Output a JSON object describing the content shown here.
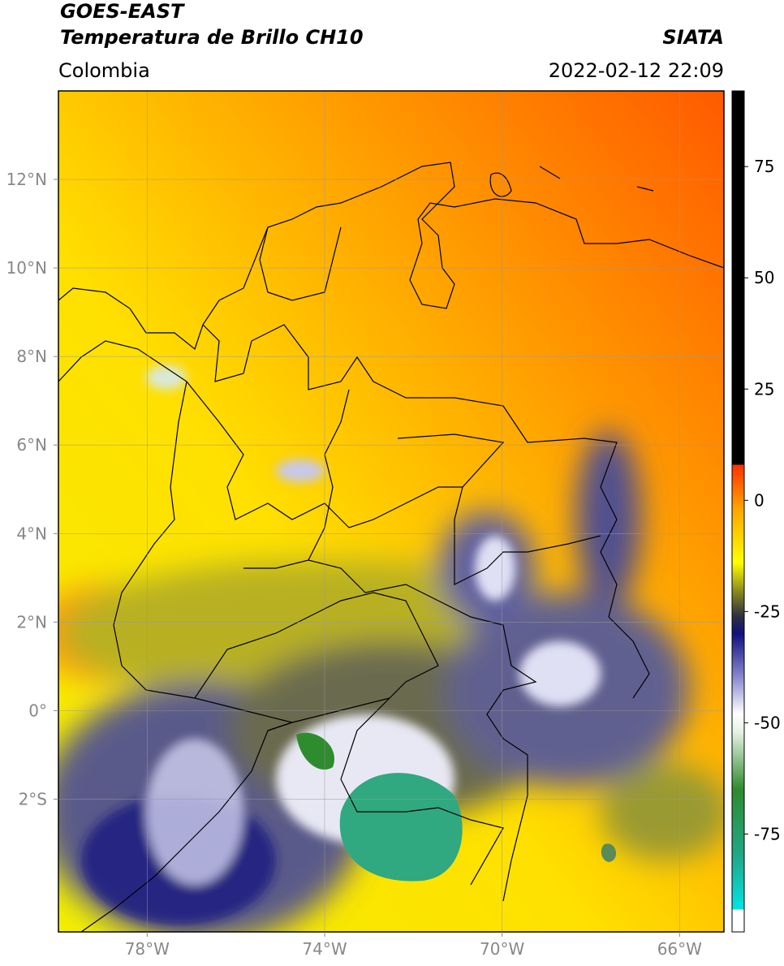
{
  "header": {
    "title": "GOES-EAST",
    "subtitle": "Temperatura de Brillo CH10",
    "region": "Colombia",
    "source": "SIATA",
    "datetime": "2022-02-12 22:09"
  },
  "map": {
    "xlim": [
      -80,
      -65
    ],
    "ylim": [
      -5,
      14
    ],
    "grid": true,
    "xticks": [
      {
        "value": -78,
        "label": "78°W"
      },
      {
        "value": -74,
        "label": "74°W"
      },
      {
        "value": -70,
        "label": "70°W"
      },
      {
        "value": -66,
        "label": "66°W"
      }
    ],
    "yticks": [
      {
        "value": 12,
        "label": "12°N"
      },
      {
        "value": 10,
        "label": "10°N"
      },
      {
        "value": 8,
        "label": "8°N"
      },
      {
        "value": 6,
        "label": "6°N"
      },
      {
        "value": 4,
        "label": "4°N"
      },
      {
        "value": 2,
        "label": "2°N"
      },
      {
        "value": 0,
        "label": "0°"
      },
      {
        "value": -2,
        "label": "2°S"
      }
    ]
  },
  "colorbar": {
    "lim": [
      -97,
      92
    ],
    "ticks": [
      -75,
      -50,
      -25,
      0,
      25,
      50,
      75
    ],
    "stops": [
      {
        "value": -97,
        "color": "#ffffff"
      },
      {
        "value": -92,
        "color": "#ffffff"
      },
      {
        "value": -92,
        "color": "#00e5e5"
      },
      {
        "value": -80,
        "color": "#20a888"
      },
      {
        "value": -65,
        "color": "#2e8b2e"
      },
      {
        "value": -52,
        "color": "#e6f2e6"
      },
      {
        "value": -48,
        "color": "#ffffff"
      },
      {
        "value": -40,
        "color": "#8c8cd2"
      },
      {
        "value": -30,
        "color": "#101080"
      },
      {
        "value": -26,
        "color": "#303040"
      },
      {
        "value": -21,
        "color": "#808020"
      },
      {
        "value": -14,
        "color": "#ffff00"
      },
      {
        "value": -2,
        "color": "#ffa500"
      },
      {
        "value": 8,
        "color": "#ff3000"
      },
      {
        "value": 8,
        "color": "#000000"
      },
      {
        "value": 92,
        "color": "#000000"
      }
    ]
  }
}
